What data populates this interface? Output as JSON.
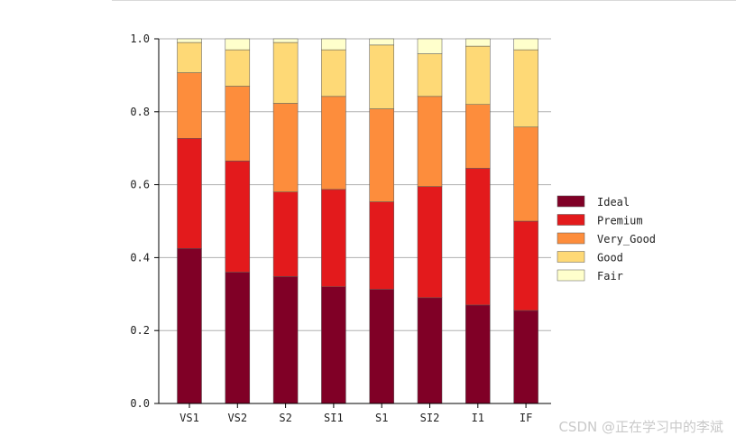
{
  "chart_data": {
    "type": "bar",
    "stacked": true,
    "categories": [
      "VS1",
      "VS2",
      "S2",
      "SI1",
      "S1",
      "SI2",
      "I1",
      "IF"
    ],
    "series": [
      {
        "name": "Ideal",
        "color": "#800026",
        "values": [
          0.425,
          0.36,
          0.348,
          0.32,
          0.313,
          0.29,
          0.27,
          0.255
        ]
      },
      {
        "name": "Premium",
        "color": "#e31a1c",
        "values": [
          0.302,
          0.305,
          0.232,
          0.267,
          0.24,
          0.305,
          0.375,
          0.245
        ]
      },
      {
        "name": "Very_Good",
        "color": "#fd8d3c",
        "values": [
          0.18,
          0.205,
          0.243,
          0.255,
          0.255,
          0.247,
          0.175,
          0.258
        ]
      },
      {
        "name": "Good",
        "color": "#fed976",
        "values": [
          0.083,
          0.1,
          0.167,
          0.128,
          0.175,
          0.117,
          0.16,
          0.212
        ]
      },
      {
        "name": "Fair",
        "color": "#ffffcc",
        "values": [
          0.01,
          0.03,
          0.01,
          0.03,
          0.017,
          0.041,
          0.02,
          0.03
        ]
      }
    ],
    "ylim": [
      0,
      1
    ],
    "yticks": [
      "0.0",
      "0.2",
      "0.4",
      "0.6",
      "0.8",
      "1.0"
    ],
    "grid": "horizontal",
    "legend": "right"
  },
  "watermark": "CSDN @正在学习中的李斌"
}
